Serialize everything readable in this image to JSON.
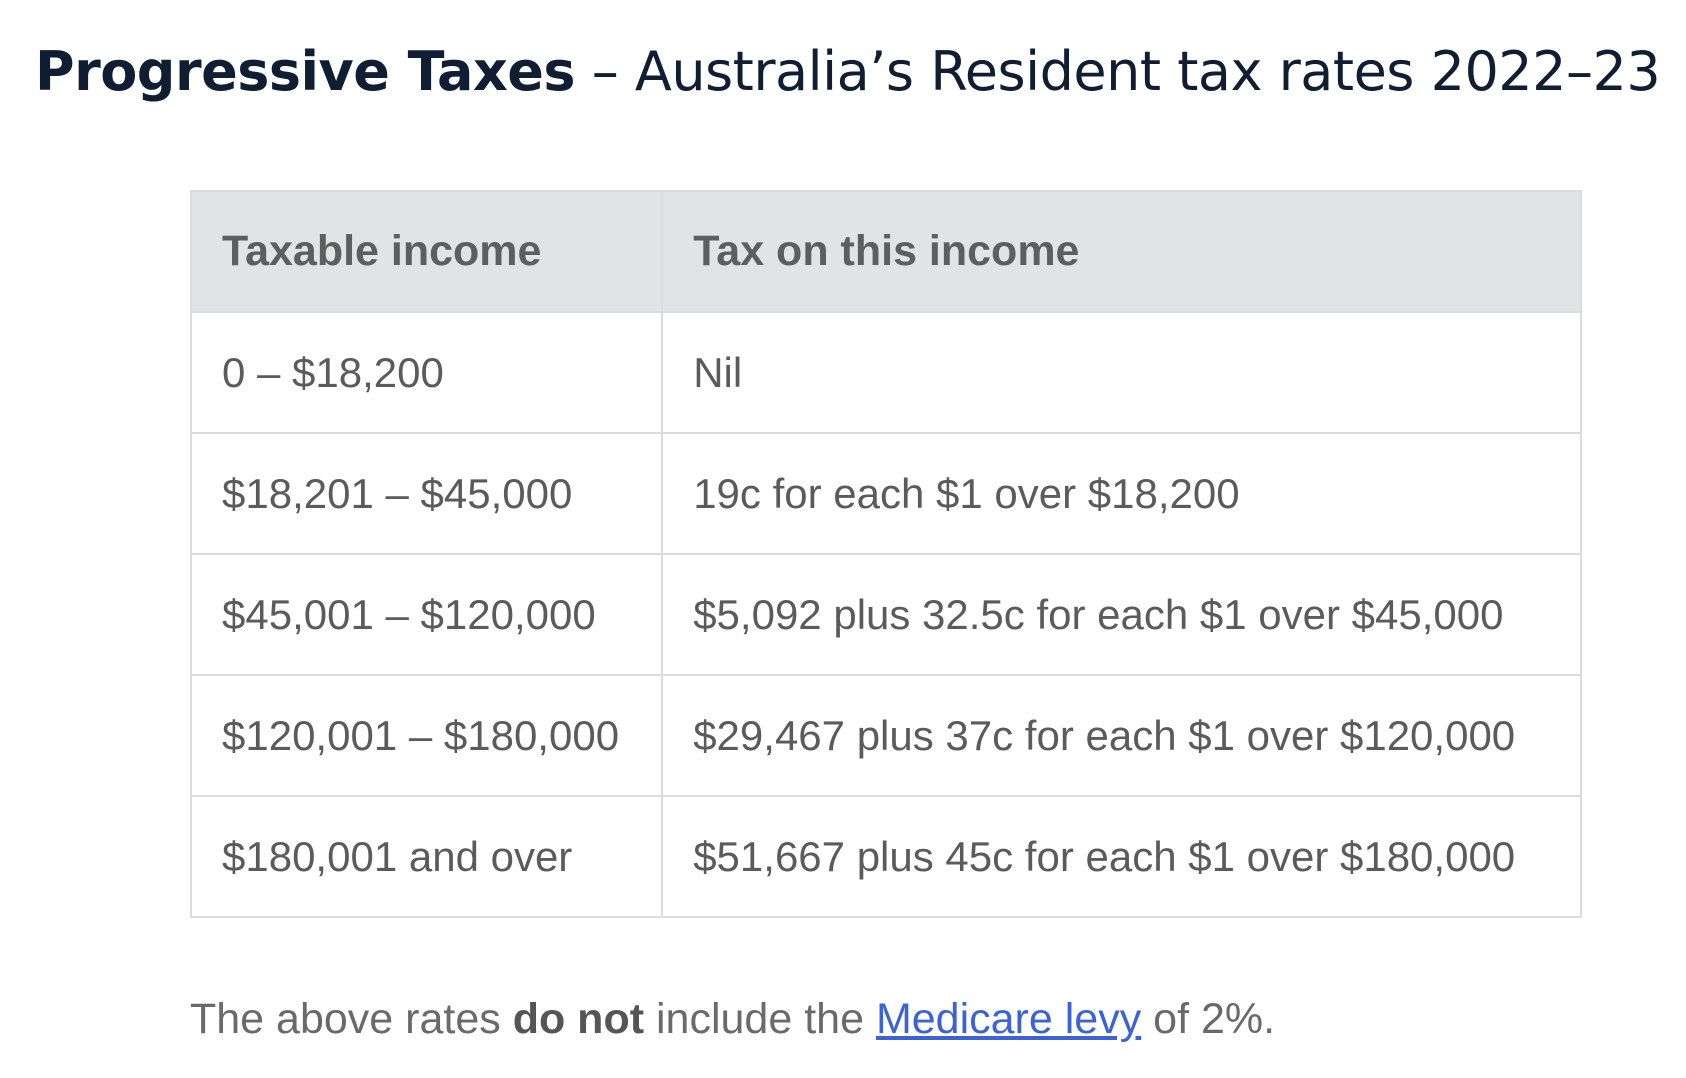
{
  "title": {
    "bold_part": "Progressive Taxes",
    "rest": " – Australia’s Resident tax rates 2022–23"
  },
  "table": {
    "headers": [
      "Taxable income",
      "Tax on this income"
    ],
    "rows": [
      [
        "0 – $18,200",
        "Nil"
      ],
      [
        "$18,201 – $45,000",
        "19c for each $1 over $18,200"
      ],
      [
        "$45,001 – $120,000",
        "$5,092 plus 32.5c for each $1 over $45,000"
      ],
      [
        "$120,001 – $180,000",
        "$29,467 plus 37c for each $1 over $120,000"
      ],
      [
        "$180,001 and over",
        "$51,667 plus 45c for each $1 over $180,000"
      ]
    ]
  },
  "footnote": {
    "before": "The above rates ",
    "emphasis": "do not",
    "middle": " include the ",
    "link_text": "Medicare levy",
    "after": " of 2%."
  },
  "colors": {
    "title": "#0f1e33",
    "header_bg": "#e2e3e4",
    "border": "#dcdcdc",
    "text": "#5b5b5b",
    "link": "#3b63d6"
  }
}
